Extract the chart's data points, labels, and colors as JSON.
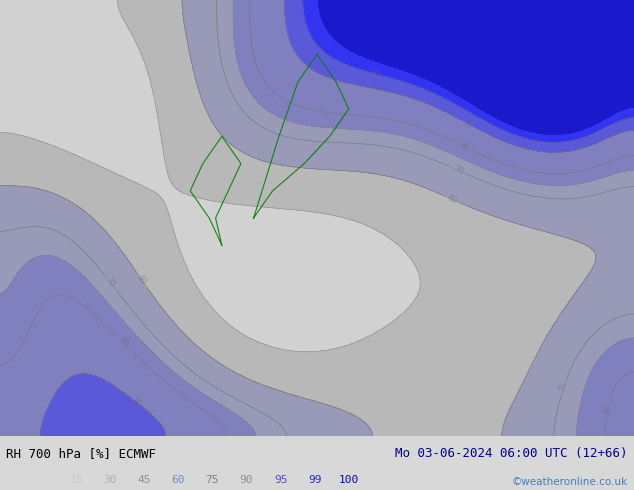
{
  "title_left": "RH 700 hPa [%] ECMWF",
  "title_right": "Mo 03-06-2024 06:00 UTC (12+66)",
  "credit": "©weatheronline.co.uk",
  "legend_values": [
    15,
    30,
    45,
    60,
    75,
    90,
    95,
    99,
    100
  ],
  "legend_colors": [
    "#ffffff",
    "#e0e0e0",
    "#c0c0c0",
    "#a0a0a0",
    "#8080a0",
    "#6060c0",
    "#4040e0",
    "#2020ff",
    "#0000cc"
  ],
  "legend_label_colors": [
    "#c0c0c0",
    "#a0a0a0",
    "#808080",
    "#6080c0",
    "#808090",
    "#8080a0",
    "#4040c0",
    "#2020c0",
    "#0000a0"
  ],
  "bg_color": "#d8d8d8",
  "map_bg": "#f0f0f0",
  "fig_width": 6.34,
  "fig_height": 4.9,
  "title_fontsize": 9,
  "credit_fontsize": 7.5,
  "legend_fontsize": 8
}
